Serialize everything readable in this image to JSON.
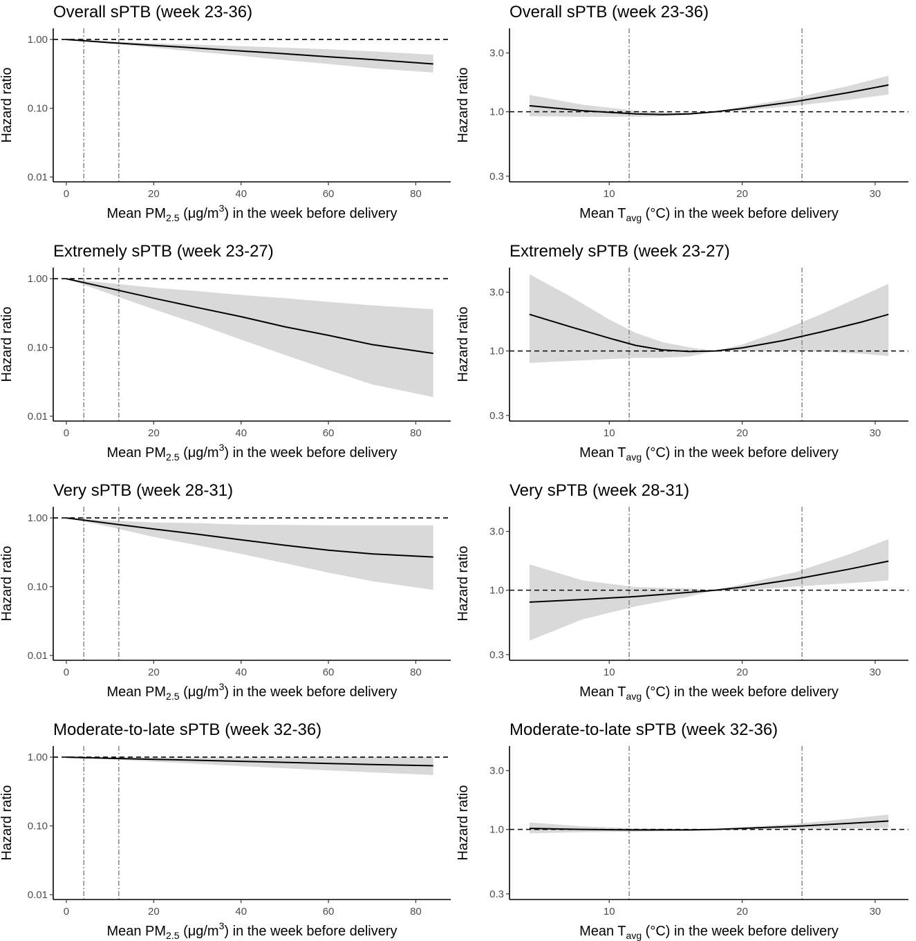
{
  "chart_data": [
    {
      "type": "line",
      "scale": "log",
      "title": "Overall sPTB (week 23-36)",
      "xlabel": {
        "pre": "Mean PM",
        "sub": "2.5",
        "mid": " (μg/m",
        "sup": "3",
        "post": ") in the week before delivery"
      },
      "ylabel": "Hazard ratio",
      "xlim": [
        -3,
        88
      ],
      "ylim": [
        0.0085,
        1.45
      ],
      "xticks": [
        0,
        20,
        40,
        60,
        80
      ],
      "xtick_labels": [
        "0",
        "20",
        "40",
        "60",
        "80"
      ],
      "yticks": [
        1.0,
        0.1,
        0.01
      ],
      "ytick_labels": [
        "1.00",
        "0.10",
        "0.01"
      ],
      "reference_hline": 1.0,
      "reference_vlines": [
        4,
        12
      ],
      "x": [
        0,
        10,
        20,
        30,
        40,
        50,
        60,
        70,
        84
      ],
      "estimate": [
        1.0,
        0.9,
        0.82,
        0.75,
        0.68,
        0.62,
        0.56,
        0.51,
        0.44
      ],
      "ci_lower": [
        1.0,
        0.87,
        0.76,
        0.66,
        0.58,
        0.5,
        0.44,
        0.38,
        0.33
      ],
      "ci_upper": [
        1.0,
        0.93,
        0.88,
        0.84,
        0.8,
        0.76,
        0.72,
        0.67,
        0.6
      ]
    },
    {
      "type": "line",
      "scale": "log",
      "title": "Overall sPTB (week 23-36)",
      "xlabel": {
        "pre": "Mean T",
        "sub": "avg",
        "mid": " (°C) in the week before delivery",
        "sup": "",
        "post": ""
      },
      "ylabel": "Hazard ratio",
      "xlim": [
        2.5,
        32.5
      ],
      "ylim": [
        0.27,
        4.75
      ],
      "xticks": [
        10,
        20,
        30
      ],
      "xtick_labels": [
        "10",
        "20",
        "30"
      ],
      "yticks": [
        3.0,
        1.0,
        0.3
      ],
      "ytick_labels": [
        "3.0",
        "1.0",
        "0.3"
      ],
      "reference_hline": 1.0,
      "reference_vlines": [
        11.5,
        24.5
      ],
      "x": [
        4,
        8,
        12,
        14,
        16,
        18,
        20,
        24,
        28,
        31
      ],
      "estimate": [
        1.12,
        1.02,
        0.96,
        0.95,
        0.96,
        1.0,
        1.06,
        1.21,
        1.43,
        1.65
      ],
      "ci_lower": [
        0.92,
        0.91,
        0.91,
        0.92,
        0.94,
        1.0,
        1.02,
        1.12,
        1.25,
        1.38
      ],
      "ci_upper": [
        1.37,
        1.14,
        1.02,
        0.99,
        0.98,
        1.0,
        1.1,
        1.3,
        1.62,
        1.96
      ]
    },
    {
      "type": "line",
      "scale": "log",
      "title": "Extremely sPTB (week 23-27)",
      "xlabel": {
        "pre": "Mean PM",
        "sub": "2.5",
        "mid": " (μg/m",
        "sup": "3",
        "post": ") in the week before delivery"
      },
      "ylabel": "Hazard ratio",
      "xlim": [
        -3,
        88
      ],
      "ylim": [
        0.0085,
        1.45
      ],
      "xticks": [
        0,
        20,
        40,
        60,
        80
      ],
      "xtick_labels": [
        "0",
        "20",
        "40",
        "60",
        "80"
      ],
      "yticks": [
        1.0,
        0.1,
        0.01
      ],
      "ytick_labels": [
        "1.00",
        "0.10",
        "0.01"
      ],
      "reference_hline": 1.0,
      "reference_vlines": [
        4,
        12
      ],
      "x": [
        0,
        10,
        20,
        30,
        40,
        50,
        60,
        70,
        84
      ],
      "estimate": [
        1.0,
        0.72,
        0.52,
        0.38,
        0.28,
        0.2,
        0.15,
        0.11,
        0.082
      ],
      "ci_lower": [
        1.0,
        0.6,
        0.36,
        0.22,
        0.13,
        0.078,
        0.047,
        0.029,
        0.019
      ],
      "ci_upper": [
        1.0,
        0.86,
        0.74,
        0.66,
        0.58,
        0.52,
        0.46,
        0.41,
        0.36
      ]
    },
    {
      "type": "line",
      "scale": "log",
      "title": "Extremely sPTB (week 23-27)",
      "xlabel": {
        "pre": "Mean T",
        "sub": "avg",
        "mid": " (°C) in the week before delivery",
        "sup": "",
        "post": ""
      },
      "ylabel": "Hazard ratio",
      "xlim": [
        2.5,
        32.5
      ],
      "ylim": [
        0.27,
        4.75
      ],
      "xticks": [
        10,
        20,
        30
      ],
      "xtick_labels": [
        "10",
        "20",
        "30"
      ],
      "yticks": [
        3.0,
        1.0,
        0.3
      ],
      "ytick_labels": [
        "3.0",
        "1.0",
        "0.3"
      ],
      "reference_hline": 1.0,
      "reference_vlines": [
        11.5,
        24.5
      ],
      "x": [
        4,
        7,
        10,
        12,
        14,
        16,
        18,
        20,
        23,
        26,
        29,
        31
      ],
      "estimate": [
        1.98,
        1.58,
        1.27,
        1.11,
        1.02,
        0.99,
        1.0,
        1.06,
        1.21,
        1.43,
        1.72,
        1.98
      ],
      "ci_lower": [
        0.8,
        0.83,
        0.86,
        0.88,
        0.88,
        0.9,
        1.0,
        1.0,
        1.0,
        0.99,
        0.95,
        0.91
      ],
      "ci_upper": [
        4.2,
        2.8,
        1.8,
        1.4,
        1.18,
        1.07,
        1.0,
        1.13,
        1.47,
        2.0,
        2.8,
        3.5
      ]
    },
    {
      "type": "line",
      "scale": "log",
      "title": "Very sPTB (week 28-31)",
      "xlabel": {
        "pre": "Mean PM",
        "sub": "2.5",
        "mid": " (μg/m",
        "sup": "3",
        "post": ") in the week before delivery"
      },
      "ylabel": "Hazard ratio",
      "xlim": [
        -3,
        88
      ],
      "ylim": [
        0.0085,
        1.45
      ],
      "xticks": [
        0,
        20,
        40,
        60,
        80
      ],
      "xtick_labels": [
        "0",
        "20",
        "40",
        "60",
        "80"
      ],
      "yticks": [
        1.0,
        0.1,
        0.01
      ],
      "ytick_labels": [
        "1.00",
        "0.10",
        "0.01"
      ],
      "reference_hline": 1.0,
      "reference_vlines": [
        4,
        12
      ],
      "x": [
        0,
        10,
        20,
        30,
        40,
        50,
        60,
        70,
        84
      ],
      "estimate": [
        1.0,
        0.83,
        0.69,
        0.58,
        0.48,
        0.4,
        0.34,
        0.3,
        0.27
      ],
      "ci_lower": [
        1.0,
        0.74,
        0.53,
        0.4,
        0.3,
        0.22,
        0.16,
        0.12,
        0.09
      ],
      "ci_upper": [
        1.0,
        0.92,
        0.86,
        0.84,
        0.8,
        0.79,
        0.78,
        0.78,
        0.78
      ]
    },
    {
      "type": "line",
      "scale": "log",
      "title": "Very sPTB (week 28-31)",
      "xlabel": {
        "pre": "Mean T",
        "sub": "avg",
        "mid": " (°C) in the week before delivery",
        "sup": "",
        "post": ""
      },
      "ylabel": "Hazard ratio",
      "xlim": [
        2.5,
        32.5
      ],
      "ylim": [
        0.27,
        4.75
      ],
      "xticks": [
        10,
        20,
        30
      ],
      "xtick_labels": [
        "10",
        "20",
        "30"
      ],
      "yticks": [
        3.0,
        1.0,
        0.3
      ],
      "ytick_labels": [
        "3.0",
        "1.0",
        "0.3"
      ],
      "reference_hline": 1.0,
      "reference_vlines": [
        11.5,
        24.5
      ],
      "x": [
        4,
        8,
        12,
        16,
        18,
        20,
        24,
        28,
        31
      ],
      "estimate": [
        0.8,
        0.84,
        0.89,
        0.96,
        1.0,
        1.06,
        1.23,
        1.48,
        1.72
      ],
      "ci_lower": [
        0.39,
        0.58,
        0.74,
        0.89,
        1.0,
        1.0,
        1.07,
        1.14,
        1.2
      ],
      "ci_upper": [
        1.62,
        1.2,
        1.06,
        1.03,
        1.0,
        1.12,
        1.4,
        1.95,
        2.6
      ]
    },
    {
      "type": "line",
      "scale": "log",
      "title": "Moderate-to-late sPTB (week 32-36)",
      "xlabel": {
        "pre": "Mean PM",
        "sub": "2.5",
        "mid": " (μg/m",
        "sup": "3",
        "post": ") in the week before delivery"
      },
      "ylabel": "Hazard ratio",
      "xlim": [
        -3,
        88
      ],
      "ylim": [
        0.0085,
        1.45
      ],
      "xticks": [
        0,
        20,
        40,
        60,
        80
      ],
      "xtick_labels": [
        "0",
        "20",
        "40",
        "60",
        "80"
      ],
      "yticks": [
        1.0,
        0.1,
        0.01
      ],
      "ytick_labels": [
        "1.00",
        "0.10",
        "0.01"
      ],
      "reference_hline": 1.0,
      "reference_vlines": [
        4,
        12
      ],
      "x": [
        0,
        10,
        20,
        30,
        40,
        50,
        60,
        70,
        84
      ],
      "estimate": [
        1.0,
        0.96,
        0.93,
        0.9,
        0.87,
        0.84,
        0.81,
        0.78,
        0.75
      ],
      "ci_lower": [
        1.0,
        0.93,
        0.86,
        0.8,
        0.74,
        0.69,
        0.64,
        0.6,
        0.55
      ],
      "ci_upper": [
        1.0,
        0.99,
        0.99,
        0.99,
        0.99,
        0.99,
        1.0,
        1.0,
        1.0
      ]
    },
    {
      "type": "line",
      "scale": "log",
      "title": "Moderate-to-late sPTB (week 32-36)",
      "xlabel": {
        "pre": "Mean T",
        "sub": "avg",
        "mid": " (°C) in the week before delivery",
        "sup": "",
        "post": ""
      },
      "ylabel": "Hazard ratio",
      "xlim": [
        2.5,
        32.5
      ],
      "ylim": [
        0.27,
        4.75
      ],
      "xticks": [
        10,
        20,
        30
      ],
      "xtick_labels": [
        "10",
        "20",
        "30"
      ],
      "yticks": [
        3.0,
        1.0,
        0.3
      ],
      "ytick_labels": [
        "3.0",
        "1.0",
        "0.3"
      ],
      "reference_hline": 1.0,
      "reference_vlines": [
        11.5,
        24.5
      ],
      "x": [
        4,
        8,
        12,
        16,
        18,
        20,
        24,
        28,
        31
      ],
      "estimate": [
        1.02,
        1.0,
        0.99,
        0.99,
        1.0,
        1.02,
        1.06,
        1.12,
        1.17
      ],
      "ci_lower": [
        0.93,
        0.95,
        0.96,
        0.98,
        1.0,
        1.0,
        1.01,
        1.02,
        1.03
      ],
      "ci_upper": [
        1.14,
        1.06,
        1.02,
        1.01,
        1.0,
        1.04,
        1.11,
        1.22,
        1.32
      ]
    }
  ]
}
